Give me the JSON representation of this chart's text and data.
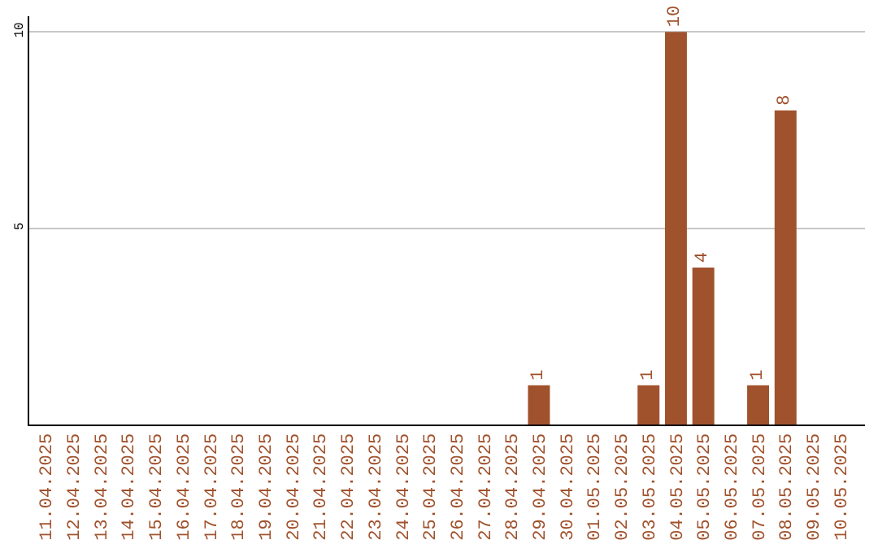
{
  "chart_data": {
    "type": "bar",
    "categories": [
      "11.04.2025",
      "12.04.2025",
      "13.04.2025",
      "14.04.2025",
      "15.04.2025",
      "16.04.2025",
      "17.04.2025",
      "18.04.2025",
      "19.04.2025",
      "20.04.2025",
      "21.04.2025",
      "22.04.2025",
      "23.04.2025",
      "24.04.2025",
      "25.04.2025",
      "26.04.2025",
      "27.04.2025",
      "28.04.2025",
      "29.04.2025",
      "30.04.2025",
      "01.05.2025",
      "02.05.2025",
      "03.05.2025",
      "04.05.2025",
      "05.05.2025",
      "06.05.2025",
      "07.05.2025",
      "08.05.2025",
      "09.05.2025",
      "10.05.2025"
    ],
    "values": [
      0,
      0,
      0,
      0,
      0,
      0,
      0,
      0,
      0,
      0,
      0,
      0,
      0,
      0,
      0,
      0,
      0,
      0,
      1,
      0,
      0,
      0,
      1,
      10,
      4,
      0,
      1,
      8,
      0,
      0
    ],
    "value_labels": [
      null,
      null,
      null,
      null,
      null,
      null,
      null,
      null,
      null,
      null,
      null,
      null,
      null,
      null,
      null,
      null,
      null,
      null,
      "1",
      null,
      null,
      null,
      "1",
      "10",
      "4",
      null,
      "1",
      "8",
      null,
      null
    ],
    "color": "#a0522d",
    "ylim": [
      0,
      10.4
    ],
    "yticks": [
      5,
      10
    ],
    "grid": "y",
    "legend": false
  }
}
